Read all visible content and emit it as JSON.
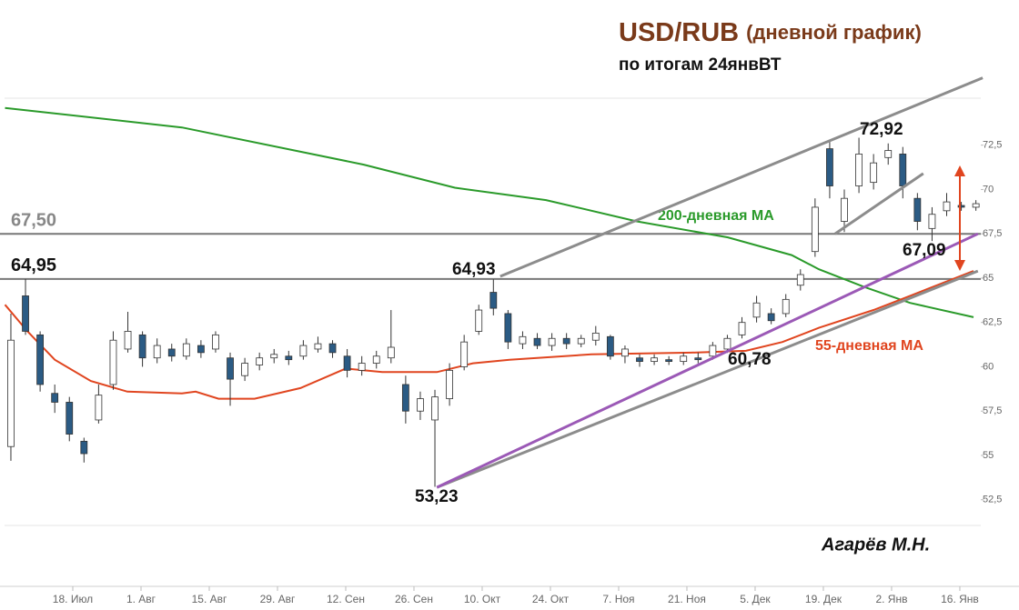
{
  "chart_data": {
    "type": "candlestick",
    "title": "USD/RUB",
    "title_note": "(дневной график)",
    "subtitle": "по итогам 24янвВТ",
    "author": "Агарёв М.Н.",
    "up_color": "#ffffff",
    "down_color": "#2b5b84",
    "x": [
      -12.7,
      -9.7,
      -6.7,
      -3.7,
      -0.7,
      2.3,
      5.3,
      8.3,
      11.3,
      14.3,
      17.3,
      20.3,
      23.3,
      26.3,
      29.3,
      32.3,
      35.3,
      38.3,
      41.3,
      44.3,
      47.3,
      50.3,
      53.3,
      56.3,
      59.3,
      62.3,
      65.3,
      68.3,
      71.3,
      74.3,
      77.3,
      80.3,
      83.3,
      86.3,
      89.3,
      92.3,
      95.3,
      98.3,
      101.3,
      104.3,
      107.3,
      110.3,
      113.3,
      116.3,
      119.3,
      122.3,
      125.3,
      128.3,
      131.3,
      134.3,
      137.3,
      140.3,
      143.3,
      146.3,
      149.3,
      152.3,
      155.3,
      158.3,
      161.3,
      164.3,
      167.3,
      170.3,
      173.3,
      176.3,
      179.3,
      182.3,
      185.3
    ],
    "open": [
      55.5,
      64,
      61.8,
      58.5,
      58,
      55.8,
      57,
      59,
      61,
      61.8,
      60.5,
      61,
      60.6,
      61.2,
      61,
      60.5,
      59.5,
      60.1,
      60.5,
      60.6,
      60.6,
      61,
      61.3,
      60.6,
      59.8,
      60.2,
      60.5,
      59,
      57.5,
      57,
      58.2,
      60,
      62,
      64.2,
      63,
      61.3,
      61.6,
      61.2,
      61.6,
      61.3,
      61.5,
      61.7,
      60.6,
      60.5,
      60.3,
      60.4,
      60.3,
      60.5,
      60.6,
      61,
      61.8,
      62.8,
      63,
      63,
      64.6,
      66.5,
      72.3,
      68.2,
      70.2,
      70.4,
      71.8,
      72,
      69.5,
      67.8,
      68.8,
      69.1,
      69
    ],
    "high": [
      63,
      64.95,
      62,
      59,
      58.3,
      56,
      59,
      62,
      63.1,
      62,
      61.6,
      61.3,
      61.6,
      61.5,
      62,
      60.8,
      60.5,
      60.8,
      61,
      60.9,
      61.5,
      61.7,
      61.5,
      61,
      60.6,
      60.9,
      63.2,
      59.5,
      58.6,
      58.7,
      60.2,
      61.8,
      63.5,
      64.93,
      63.2,
      62,
      61.9,
      61.9,
      61.9,
      61.8,
      62.3,
      61.8,
      61.2,
      60.7,
      60.7,
      60.6,
      60.8,
      60.8,
      61.4,
      61.8,
      62.8,
      64,
      63.3,
      64.1,
      65.5,
      69.5,
      72.7,
      70,
      72.92,
      72,
      72.6,
      72.4,
      69.8,
      69,
      69.8,
      69.3,
      69.4
    ],
    "low": [
      54.7,
      61.8,
      58.6,
      57.4,
      55.8,
      54.6,
      56.8,
      58.7,
      60.8,
      60,
      60.2,
      60.3,
      60.4,
      60.5,
      60.8,
      57.8,
      59.2,
      59.8,
      60.2,
      60.1,
      60.4,
      60.8,
      60.5,
      59.4,
      59.5,
      59.9,
      60.2,
      56.8,
      57,
      53.23,
      57.8,
      59.8,
      61.8,
      62.9,
      61,
      61,
      61,
      60.9,
      61,
      61.1,
      61.2,
      60.4,
      60.2,
      60,
      60.1,
      60.1,
      60.1,
      60.2,
      60.4,
      60.78,
      61.6,
      62.5,
      62.4,
      62.8,
      64.3,
      66.2,
      69.5,
      67.6,
      69.8,
      70,
      71.4,
      69.5,
      67.7,
      67.09,
      68.5,
      68.8,
      68.8
    ],
    "close": [
      61.5,
      62,
      59,
      58,
      56.2,
      55.1,
      58.4,
      61.5,
      62,
      60.5,
      61.2,
      60.6,
      61.3,
      60.8,
      61.8,
      59.3,
      60.2,
      60.5,
      60.7,
      60.4,
      61.2,
      61.3,
      60.8,
      59.8,
      60.2,
      60.6,
      61.1,
      57.5,
      58.2,
      58.3,
      59.8,
      61.4,
      63.2,
      63.3,
      61.4,
      61.7,
      61.2,
      61.6,
      61.3,
      61.6,
      61.9,
      60.6,
      61,
      60.3,
      60.5,
      60.3,
      60.6,
      60.4,
      61.2,
      61.6,
      62.5,
      63.6,
      62.6,
      63.8,
      65.2,
      69,
      70.2,
      69.5,
      72,
      71.5,
      72.2,
      70.2,
      68.2,
      68.6,
      69.3,
      69,
      69.2
    ],
    "lines": [
      {
        "name": "200-дневная MA",
        "color": "#2a9a2a",
        "x": [
          -13.9,
          22.4,
          59.7,
          78.4,
          97.1,
          115.7,
          134.4,
          147.5,
          153.1,
          162.4,
          171.8,
          184.8
        ],
        "values": [
          74.6,
          73.5,
          71.4,
          70.1,
          69.4,
          68.2,
          67.3,
          66.3,
          65.5,
          64.5,
          63.6,
          62.8
        ]
      },
      {
        "name": "55-дневная MA",
        "color": "#e0451f",
        "x": [
          -13.9,
          -9.3,
          -3.7,
          3.7,
          11.2,
          22.4,
          25.2,
          29.9,
          37.3,
          46.7,
          56,
          63.5,
          74.7,
          82.1,
          89.6,
          106.4,
          126.9,
          138.1,
          145.6,
          153.1,
          164.3,
          171.8,
          184.8
        ],
        "values": [
          63.5,
          62,
          60.4,
          59.2,
          58.6,
          58.5,
          58.6,
          58.2,
          58.2,
          58.8,
          59.9,
          59.7,
          59.7,
          60.2,
          60.4,
          60.7,
          60.8,
          60.9,
          61.4,
          62.2,
          63.2,
          64,
          65.4
        ]
      }
    ],
    "levels": [
      {
        "value": 67.5,
        "label": "67,50"
      },
      {
        "value": 64.95,
        "label": "64,95"
      }
    ],
    "trendlines": [
      {
        "color": "#8c8c8c",
        "x": [
          87.7,
          186.7
        ],
        "values": [
          65.1,
          76.3
        ]
      },
      {
        "color": "#8c8c8c",
        "x": [
          74.7,
          185.7
        ],
        "values": [
          53.2,
          65.4
        ]
      },
      {
        "color": "#9b59b6",
        "x": [
          74.7,
          185.7
        ],
        "values": [
          53.2,
          67.5
        ]
      },
      {
        "color": "#8c8c8c",
        "x": [
          156.4,
          174.5
        ],
        "values": [
          67.5,
          70.9
        ]
      }
    ],
    "annotations": [
      "64,93",
      "72,92",
      "67,09",
      "60,78",
      "53,23"
    ],
    "xlim": [
      -14,
      186.3
    ],
    "ylim": [
      51.05,
      75.15
    ],
    "xticks": [
      {
        "value": 0,
        "label": "18. Июл"
      },
      {
        "value": 14,
        "label": "1. Авг"
      },
      {
        "value": 28,
        "label": "15. Авг"
      },
      {
        "value": 42,
        "label": "29. Авг"
      },
      {
        "value": 56,
        "label": "12. Сен"
      },
      {
        "value": 70,
        "label": "26. Сен"
      },
      {
        "value": 84,
        "label": "10. Окт"
      },
      {
        "value": 98,
        "label": "24. Окт"
      },
      {
        "value": 112,
        "label": "7. Ноя"
      },
      {
        "value": 126,
        "label": "21. Ноя"
      },
      {
        "value": 140,
        "label": "5. Дек"
      },
      {
        "value": 154,
        "label": "19. Дек"
      },
      {
        "value": 168,
        "label": "2. Янв"
      },
      {
        "value": 182,
        "label": "16. Янв"
      }
    ],
    "yticks": [
      {
        "value": 52.5,
        "label": "52,5"
      },
      55,
      {
        "value": 57.5,
        "label": "57,5"
      },
      60,
      {
        "value": 62.5,
        "label": "62,5"
      },
      65,
      {
        "value": 67.5,
        "label": "67,5"
      },
      70,
      {
        "value": 72.5,
        "label": "72,5"
      }
    ]
  }
}
